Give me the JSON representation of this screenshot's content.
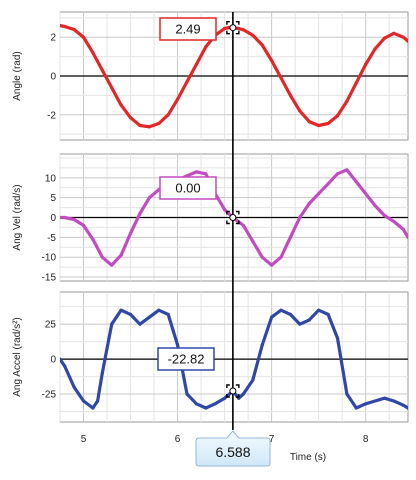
{
  "chart_data": [
    {
      "type": "line",
      "ylabel": "Angle (rad)",
      "ylim": [
        -3.3,
        3.3
      ],
      "yticks": [
        2,
        0,
        -2
      ],
      "color": "#e32626",
      "series": [
        {
          "x": [
            4.75,
            4.8,
            4.9,
            5.0,
            5.1,
            5.2,
            5.3,
            5.4,
            5.5,
            5.6,
            5.7,
            5.8,
            5.9,
            6.0,
            6.1,
            6.2,
            6.3,
            6.4,
            6.5,
            6.55,
            6.588,
            6.65,
            6.7,
            6.8,
            6.9,
            7.0,
            7.1,
            7.2,
            7.3,
            7.4,
            7.5,
            7.6,
            7.7,
            7.8,
            7.9,
            8.0,
            8.1,
            8.2,
            8.3,
            8.4,
            8.45
          ],
          "y": [
            2.6,
            2.55,
            2.4,
            2.0,
            1.2,
            0.3,
            -0.6,
            -1.5,
            -2.15,
            -2.55,
            -2.62,
            -2.45,
            -2.0,
            -1.2,
            -0.3,
            0.6,
            1.5,
            2.1,
            2.45,
            2.5,
            2.49,
            2.45,
            2.38,
            2.1,
            1.6,
            0.8,
            -0.1,
            -1.0,
            -1.8,
            -2.35,
            -2.55,
            -2.45,
            -2.05,
            -1.3,
            -0.35,
            0.6,
            1.4,
            1.95,
            2.2,
            2.0,
            1.8
          ]
        }
      ]
    },
    {
      "type": "line",
      "ylabel": "Ang Vel (rad/s)",
      "ylim": [
        -16,
        16
      ],
      "yticks": [
        10,
        5,
        0,
        -5,
        -10,
        -15
      ],
      "color": "#c24bc2",
      "series": [
        {
          "x": [
            4.75,
            4.8,
            4.9,
            5.0,
            5.1,
            5.2,
            5.3,
            5.4,
            5.5,
            5.6,
            5.7,
            5.8,
            5.9,
            6.0,
            6.1,
            6.2,
            6.3,
            6.4,
            6.5,
            6.588,
            6.7,
            6.8,
            6.9,
            7.0,
            7.1,
            7.2,
            7.3,
            7.4,
            7.5,
            7.6,
            7.7,
            7.8,
            7.9,
            8.0,
            8.1,
            8.2,
            8.3,
            8.4,
            8.45
          ],
          "y": [
            0,
            0,
            -0.5,
            -2,
            -5.5,
            -10,
            -12,
            -9.5,
            -4,
            1,
            5,
            7,
            8.5,
            9.5,
            10.5,
            11.5,
            11,
            6,
            2,
            0,
            -2,
            -6,
            -10,
            -12,
            -10,
            -5,
            0,
            3.5,
            6,
            8.5,
            11,
            12,
            9,
            6,
            3,
            0.5,
            -1,
            -3,
            -5
          ]
        }
      ]
    },
    {
      "type": "line",
      "ylabel": "Ang Accel (rad/s²)",
      "ylim": [
        -45,
        48
      ],
      "yticks": [
        25,
        0,
        -25
      ],
      "color": "#2f48a8",
      "xlabel": "Time (s)",
      "xlim": [
        4.75,
        8.45
      ],
      "xticks": [
        5,
        6,
        7,
        8
      ],
      "series": [
        {
          "x": [
            4.75,
            4.8,
            4.9,
            5.0,
            5.1,
            5.15,
            5.2,
            5.3,
            5.4,
            5.5,
            5.6,
            5.7,
            5.8,
            5.9,
            6.0,
            6.1,
            6.2,
            6.3,
            6.4,
            6.5,
            6.588,
            6.65,
            6.7,
            6.8,
            6.9,
            7.0,
            7.1,
            7.2,
            7.3,
            7.4,
            7.5,
            7.6,
            7.7,
            7.8,
            7.9,
            8.0,
            8.1,
            8.2,
            8.3,
            8.4,
            8.45
          ],
          "y": [
            0,
            -5,
            -20,
            -30,
            -35,
            -30,
            -10,
            25,
            35,
            32,
            25,
            30,
            35,
            32,
            10,
            -25,
            -32,
            -35,
            -32,
            -28,
            -22.82,
            -28,
            -25,
            -15,
            10,
            30,
            35,
            32,
            25,
            28,
            35,
            32,
            15,
            -25,
            -35,
            -32,
            -30,
            -28,
            -30,
            -33,
            -35
          ]
        }
      ]
    }
  ],
  "cursor": {
    "time": "6.588",
    "time_value": 6.588,
    "readouts": [
      "2.49",
      "0.00",
      "-22.82"
    ]
  }
}
